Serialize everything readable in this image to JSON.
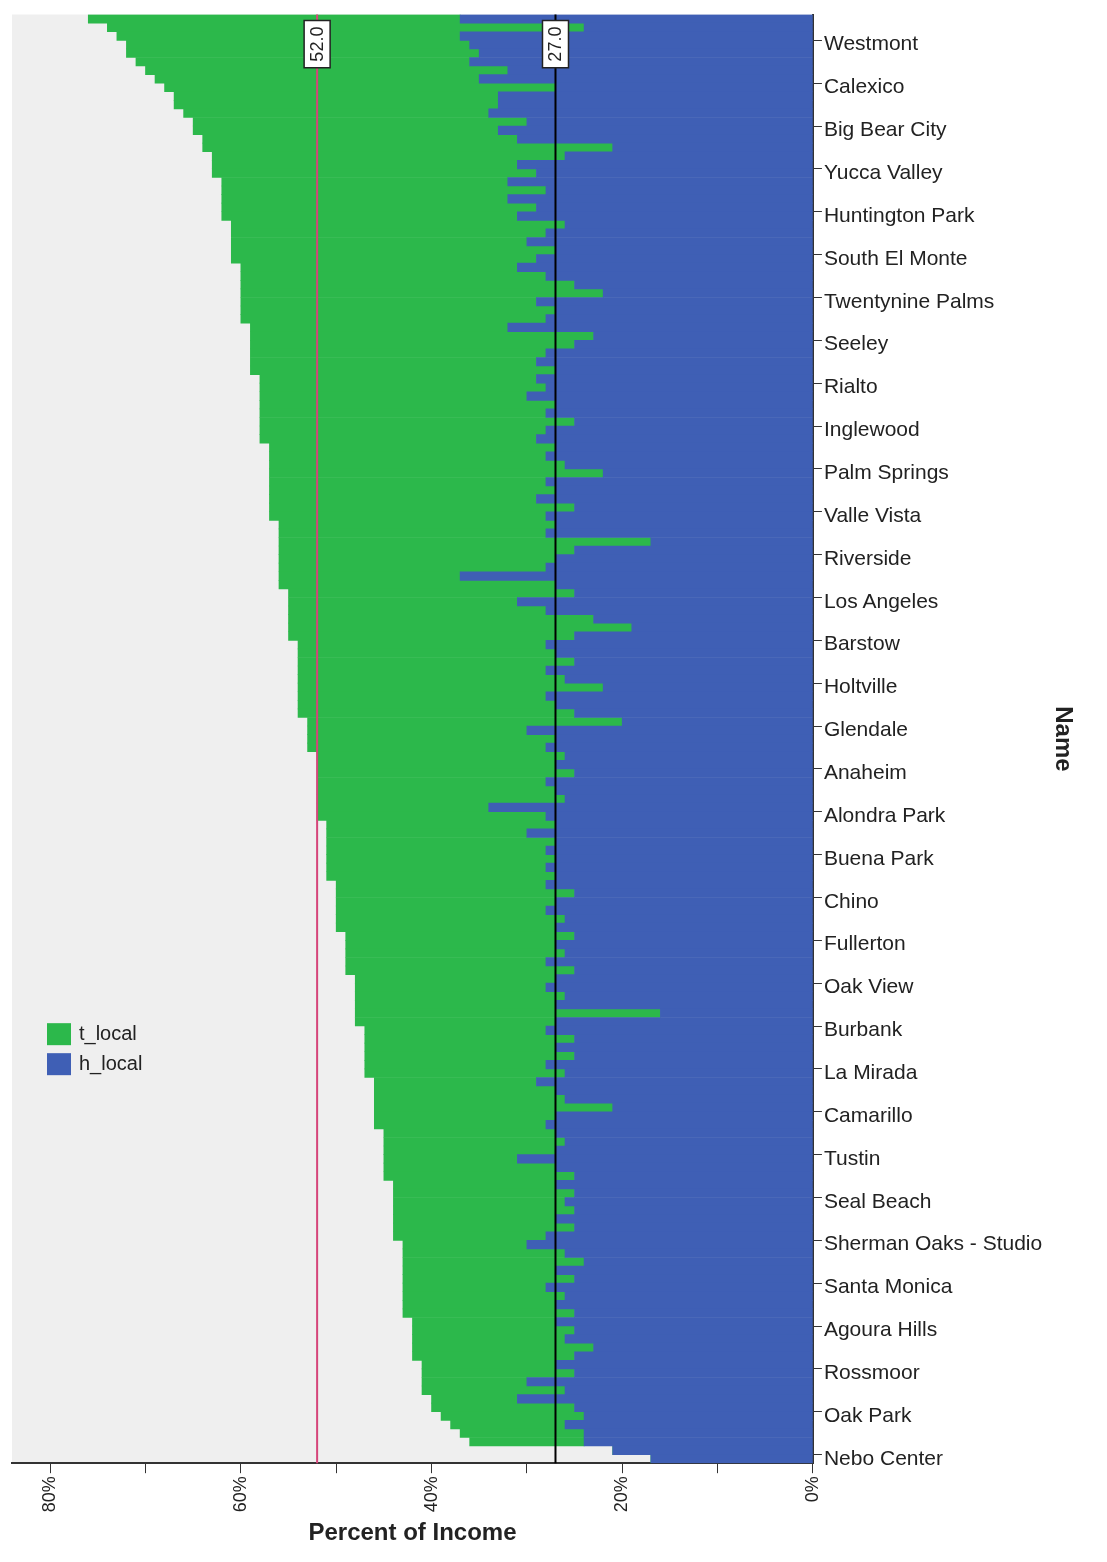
{
  "chart_data": {
    "type": "bar",
    "orientation": "horizontal",
    "stacked": true,
    "xlabel": "Percent of Income",
    "ylabel": "Name",
    "categories": [
      null,
      null,
      null,
      "Westmont",
      null,
      null,
      null,
      null,
      "Calexico",
      null,
      null,
      null,
      null,
      "Big Bear City",
      null,
      null,
      null,
      null,
      "Yucca Valley",
      null,
      null,
      null,
      null,
      "Huntington Park",
      null,
      null,
      null,
      null,
      "South El Monte",
      null,
      null,
      null,
      null,
      "Twentynine Palms",
      null,
      null,
      null,
      null,
      "Seeley",
      null,
      null,
      null,
      null,
      "Rialto",
      null,
      null,
      null,
      null,
      "Inglewood",
      null,
      null,
      null,
      null,
      "Palm Springs",
      null,
      null,
      null,
      null,
      "Valle Vista",
      null,
      null,
      null,
      null,
      "Riverside",
      null,
      null,
      null,
      null,
      "Los Angeles",
      null,
      null,
      null,
      null,
      "Barstow",
      null,
      null,
      null,
      null,
      "Holtville",
      null,
      null,
      null,
      null,
      "Glendale",
      null,
      null,
      null,
      null,
      "Anaheim",
      null,
      null,
      null,
      null,
      "Alondra Park",
      null,
      null,
      null,
      null,
      "Buena Park",
      null,
      null,
      null,
      null,
      "Chino",
      null,
      null,
      null,
      null,
      "Fullerton",
      null,
      null,
      null,
      null,
      "Oak View",
      null,
      null,
      null,
      null,
      "Burbank",
      null,
      null,
      null,
      null,
      "La Mirada",
      null,
      null,
      null,
      null,
      "Camarillo",
      null,
      null,
      null,
      null,
      "Tustin",
      null,
      null,
      null,
      null,
      "Seal Beach",
      null,
      null,
      null,
      null,
      "Sherman Oaks - Studio",
      null,
      null,
      null,
      null,
      "Santa Monica",
      null,
      null,
      null,
      null,
      "Agoura Hills",
      null,
      null,
      null,
      null,
      "Rossmoor",
      null,
      null,
      null,
      null,
      "Oak Park",
      null,
      null,
      null,
      null,
      "Nebo Center"
    ],
    "series": [
      {
        "name": "h_local",
        "color": "#3f5fb5",
        "values": [
          37,
          24,
          37,
          36,
          35,
          36,
          32,
          35,
          27,
          33,
          33,
          34,
          30,
          33,
          31,
          21,
          26,
          31,
          29,
          32,
          28,
          32,
          29,
          31,
          26,
          28,
          30,
          27,
          29,
          31,
          28,
          25,
          22,
          29,
          27,
          28,
          32,
          23,
          25,
          28,
          29,
          27,
          29,
          28,
          30,
          27,
          28,
          25,
          28,
          29,
          27,
          28,
          26,
          22,
          28,
          27,
          29,
          25,
          28,
          27,
          28,
          17,
          25,
          27,
          28,
          37,
          27,
          25,
          31,
          28,
          23,
          19,
          25,
          28,
          27,
          25,
          28,
          26,
          22,
          28,
          27,
          25,
          20,
          30,
          27,
          28,
          26,
          27,
          25,
          28,
          27,
          26,
          34,
          28,
          27,
          30,
          27,
          28,
          27,
          28,
          27,
          28,
          25,
          27,
          28,
          26,
          27,
          25,
          27,
          26,
          28,
          25,
          27,
          28,
          26,
          27,
          16,
          27,
          28,
          25,
          27,
          25,
          28,
          26,
          29,
          27,
          26,
          21,
          27,
          28,
          27,
          26,
          27,
          31,
          27,
          25,
          27,
          25,
          26,
          25,
          27,
          25,
          28,
          30,
          26,
          24,
          27,
          25,
          28,
          26,
          27,
          25,
          27,
          25,
          26,
          23,
          25,
          27,
          25,
          30,
          26,
          31,
          25,
          24,
          26,
          24,
          24,
          21,
          17
        ]
      },
      {
        "name": "t_local",
        "color": "#2cb84b",
        "values": [
          39,
          50,
          36,
          36,
          37,
          35,
          38,
          34,
          41,
          34,
          34,
          32,
          35,
          32,
          33,
          43,
          37,
          32,
          34,
          30,
          34,
          30,
          33,
          31,
          35,
          33,
          31,
          34,
          32,
          29,
          32,
          35,
          38,
          31,
          33,
          32,
          27,
          36,
          34,
          31,
          30,
          32,
          29,
          30,
          28,
          31,
          30,
          33,
          30,
          29,
          30,
          29,
          31,
          35,
          29,
          30,
          28,
          32,
          29,
          29,
          28,
          39,
          31,
          29,
          28,
          19,
          29,
          30,
          24,
          27,
          32,
          36,
          30,
          26,
          27,
          29,
          26,
          28,
          32,
          26,
          27,
          29,
          33,
          23,
          26,
          25,
          26,
          25,
          27,
          24,
          25,
          26,
          18,
          24,
          24,
          21,
          24,
          23,
          24,
          23,
          24,
          22,
          25,
          23,
          22,
          24,
          23,
          24,
          22,
          23,
          21,
          24,
          21,
          20,
          22,
          21,
          32,
          21,
          19,
          22,
          20,
          22,
          19,
          21,
          17,
          19,
          20,
          25,
          19,
          18,
          18,
          19,
          18,
          14,
          18,
          20,
          17,
          19,
          18,
          19,
          17,
          19,
          16,
          13,
          17,
          19,
          16,
          18,
          15,
          17,
          16,
          18,
          15,
          17,
          16,
          19,
          17,
          14,
          16,
          11,
          15,
          9,
          15,
          15,
          12,
          13,
          12,
          0,
          0
        ]
      }
    ],
    "xlim": [
      84,
      0
    ],
    "xticks": [
      {
        "value": 0,
        "label": "0%"
      },
      {
        "value": 10,
        "label": null
      },
      {
        "value": 20,
        "label": "20%"
      },
      {
        "value": 30,
        "label": null
      },
      {
        "value": 40,
        "label": "40%"
      },
      {
        "value": 50,
        "label": null
      },
      {
        "value": 60,
        "label": "60%"
      },
      {
        "value": 70,
        "label": null
      },
      {
        "value": 80,
        "label": "80%"
      }
    ],
    "ref_lines": [
      {
        "axis": "x",
        "value": 52,
        "label": "52.0",
        "color": "#d6457a"
      },
      {
        "axis": "x",
        "value": 27,
        "label": "27.0",
        "color": "#000000"
      }
    ],
    "legend": "bottom left",
    "grid": false
  }
}
